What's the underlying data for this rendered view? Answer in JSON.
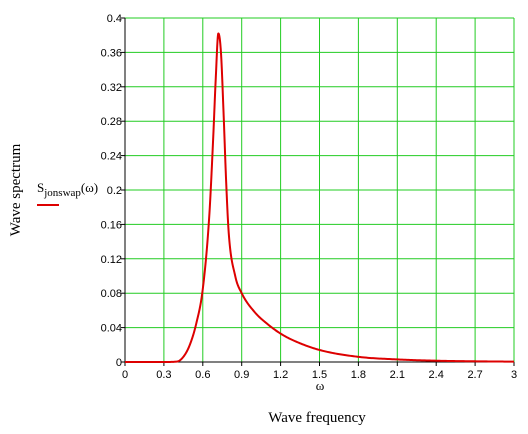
{
  "chart_data": {
    "type": "line",
    "title": "",
    "xlabel": "Wave frequency",
    "x_symbol": "ω",
    "ylabel": "Wave spectrum",
    "series": [
      {
        "name": "S_jonswap(ω)",
        "name_main": "S",
        "name_sub": "jonswap",
        "name_arg": "(ω)",
        "color": "#dd0000",
        "x": [
          0,
          0.3,
          0.4,
          0.45,
          0.5,
          0.55,
          0.6,
          0.65,
          0.68,
          0.7,
          0.72,
          0.74,
          0.76,
          0.78,
          0.8,
          0.85,
          0.9,
          1.0,
          1.1,
          1.2,
          1.3,
          1.5,
          1.8,
          2.1,
          2.4,
          2.7,
          3.0
        ],
        "y": [
          0,
          0,
          0.0005,
          0.006,
          0.02,
          0.045,
          0.085,
          0.17,
          0.26,
          0.33,
          0.382,
          0.36,
          0.29,
          0.21,
          0.15,
          0.1,
          0.08,
          0.058,
          0.044,
          0.033,
          0.025,
          0.014,
          0.006,
          0.003,
          0.0015,
          0.0008,
          0.0004
        ]
      }
    ],
    "xlim": [
      0,
      3
    ],
    "ylim": [
      0,
      0.4
    ],
    "x_ticks": [
      0,
      0.3,
      0.6,
      0.9,
      1.2,
      1.5,
      1.8,
      2.1,
      2.4,
      2.7,
      3
    ],
    "x_tick_labels": [
      "0",
      "0.3",
      "0.6",
      "0.9",
      "1.2",
      "1.5",
      "1.8",
      "2.1",
      "2.4",
      "2.7",
      "3"
    ],
    "y_ticks": [
      0,
      0.04,
      0.08,
      0.12,
      0.16,
      0.2,
      0.24,
      0.28,
      0.32,
      0.36,
      0.4
    ],
    "y_tick_labels": [
      "0",
      "0.04",
      "0.08",
      "0.12",
      "0.16",
      "0.2",
      "0.24",
      "0.28",
      "0.32",
      "0.36",
      "0.4"
    ],
    "grid": true,
    "grid_color": "#22cc22",
    "axis_color": "#000000"
  }
}
